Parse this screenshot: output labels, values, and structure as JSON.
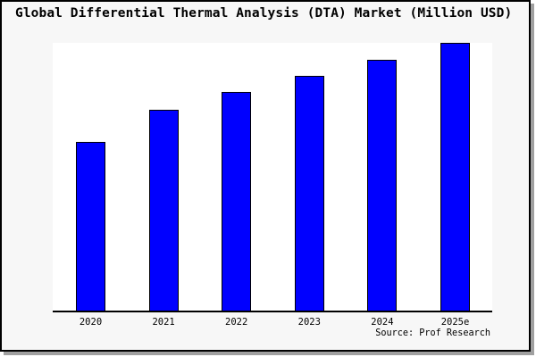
{
  "title": "Global Differential Thermal Analysis (DTA) Market (Million USD)",
  "source": "Source: Prof Research",
  "colors": {
    "bar_fill": "#0000ff",
    "bar_border": "#000000",
    "frame_background": "#f7f7f7",
    "plot_background": "#ffffff",
    "axis_line": "#000000",
    "frame_border": "#000000",
    "drop_shadow": "#a0a0a0",
    "text": "#000000"
  },
  "chart_data": {
    "type": "bar",
    "title": "Global Differential Thermal Analysis (DTA) Market (Million USD)",
    "categories": [
      "2020",
      "2021",
      "2022",
      "2023",
      "2024",
      "2025e"
    ],
    "values": [
      63,
      75,
      81.7,
      87.7,
      93.7,
      100
    ],
    "units": "relative index (no y-axis scale shown; 2025e = 100)",
    "xlabel": "",
    "ylabel": "",
    "ylim": [
      0,
      100.7
    ],
    "grid": false,
    "legend": false,
    "bar_color": "#0000ff",
    "annotations": [
      "Source: Prof Research"
    ],
    "note": "Single-series ascending bars; only bottom axis spine drawn; no tick marks, no value labels"
  }
}
